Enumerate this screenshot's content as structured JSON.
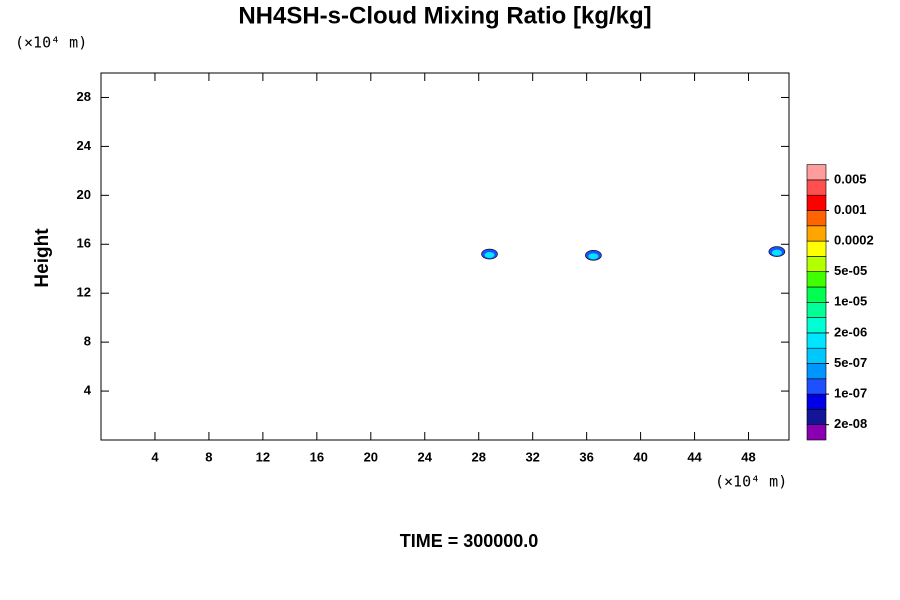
{
  "chart_data": {
    "type": "contour",
    "title": "NH4SH-s-Cloud Mixing Ratio [kg/kg]",
    "ylabel": "Height",
    "x_unit": "(×10⁴ m)",
    "y_unit": "(×10⁴ m)",
    "footer": "TIME = 300000.0",
    "xlim": [
      0,
      51
    ],
    "ylim": [
      0,
      30
    ],
    "xticks": [
      4,
      8,
      12,
      16,
      20,
      24,
      28,
      32,
      36,
      40,
      44,
      48
    ],
    "yticks": [
      4,
      8,
      12,
      16,
      20,
      24,
      28
    ],
    "clouds": {
      "x": [
        28.8,
        36.5,
        50.1
      ],
      "y": [
        15.2,
        15.1,
        15.4
      ],
      "colors": [
        "#1e50ff",
        "#00e6ff"
      ]
    },
    "colorbar": {
      "colors": [
        "#8a00b0",
        "#141496",
        "#0000e6",
        "#1e50ff",
        "#0096ff",
        "#00c8ff",
        "#00e6ff",
        "#00ffd2",
        "#00ff96",
        "#00ff50",
        "#40ff00",
        "#b4ff00",
        "#ffff00",
        "#ffa500",
        "#ff6400",
        "#ff0000",
        "#ff5050",
        "#ff9c9c"
      ],
      "ticks": [
        {
          "value": 2e-08,
          "label": "2e-08"
        },
        {
          "value": 1e-07,
          "label": "1e-07"
        },
        {
          "value": 5e-07,
          "label": "5e-07"
        },
        {
          "value": 2e-06,
          "label": "2e-06"
        },
        {
          "value": 1e-05,
          "label": "1e-05"
        },
        {
          "value": 5e-05,
          "label": "5e-05"
        },
        0.0002,
        0.001,
        0.005
      ]
    }
  }
}
